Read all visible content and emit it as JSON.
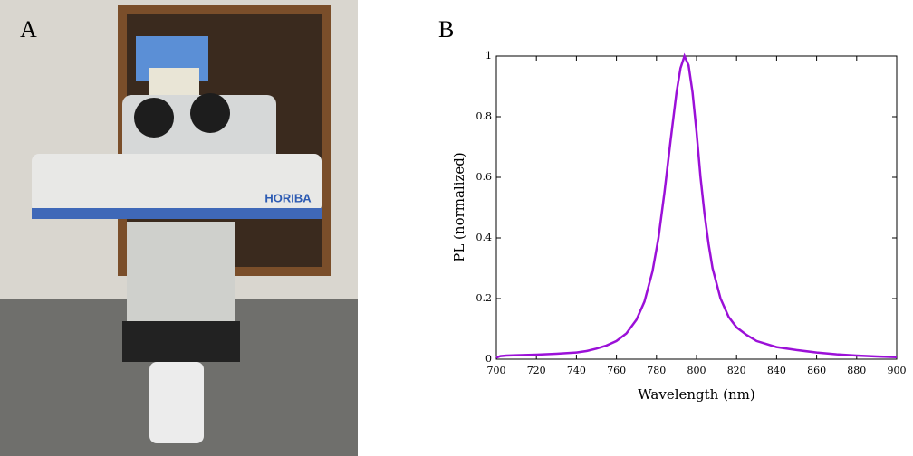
{
  "panel_labels": [
    "A",
    "B"
  ],
  "photo": {
    "brand": "HORIBA"
  },
  "chart_data": {
    "type": "line",
    "x_label": "Wavelength (nm)",
    "y_label": "PL (normalized)",
    "x": [
      700,
      702,
      705,
      710,
      720,
      730,
      740,
      745,
      750,
      755,
      760,
      765,
      770,
      774,
      778,
      781,
      784,
      787,
      790,
      792,
      794,
      796,
      798,
      800,
      802,
      804,
      806,
      808,
      812,
      816,
      820,
      825,
      830,
      840,
      850,
      860,
      870,
      880,
      890,
      900
    ],
    "values": [
      0.005,
      0.01,
      0.012,
      0.013,
      0.015,
      0.018,
      0.022,
      0.027,
      0.035,
      0.045,
      0.06,
      0.085,
      0.13,
      0.19,
      0.29,
      0.4,
      0.55,
      0.72,
      0.88,
      0.96,
      1.0,
      0.97,
      0.88,
      0.75,
      0.6,
      0.48,
      0.38,
      0.3,
      0.2,
      0.14,
      0.105,
      0.08,
      0.06,
      0.04,
      0.03,
      0.022,
      0.016,
      0.012,
      0.009,
      0.007
    ],
    "color": "#9b10d8",
    "xlim": [
      700,
      900
    ],
    "xticks": [
      700,
      720,
      740,
      760,
      780,
      800,
      820,
      840,
      860,
      880,
      900
    ],
    "ylim": [
      0,
      1
    ],
    "yticks": [
      0,
      0.2,
      0.4,
      0.6,
      0.8,
      1
    ]
  }
}
